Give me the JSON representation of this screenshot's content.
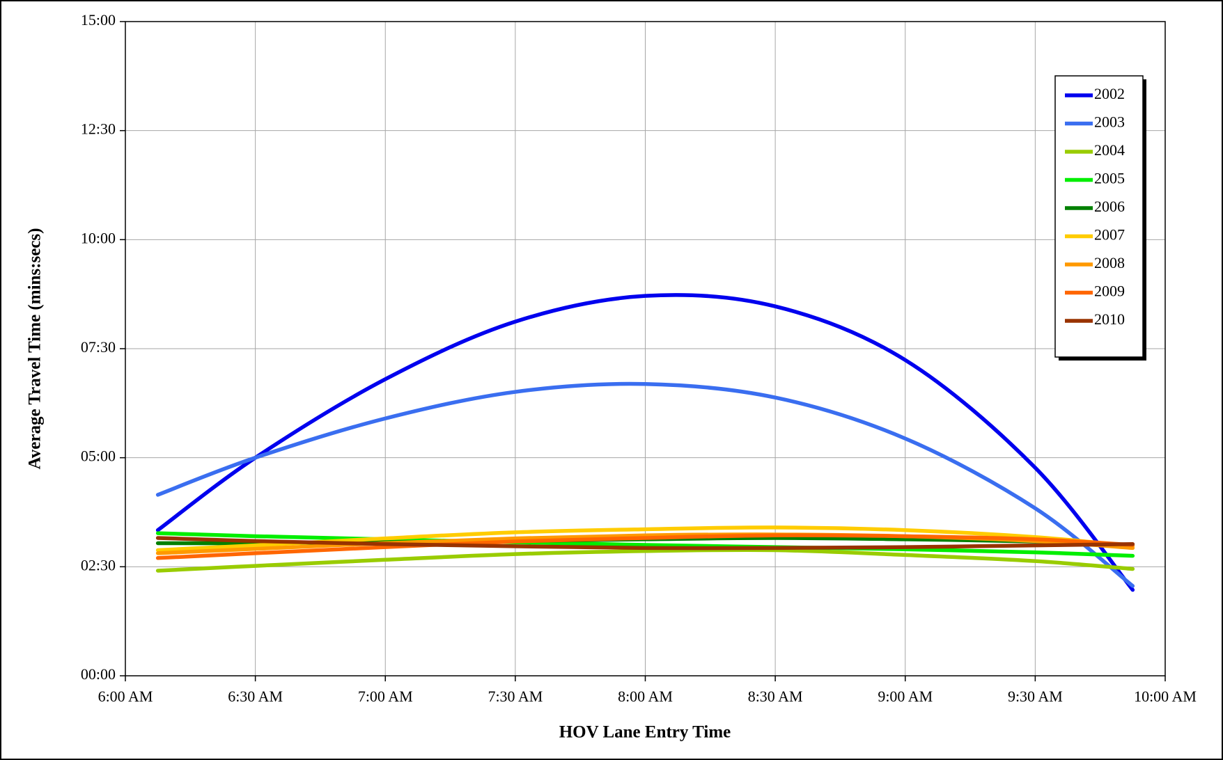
{
  "chart_data": {
    "type": "line",
    "xlabel": "HOV Lane Entry Time",
    "ylabel": "Average Travel Time (mins:secs)",
    "x": [
      6.125,
      6.5,
      7,
      7.5,
      8,
      8.5,
      9,
      9.5,
      9.875
    ],
    "series": [
      {
        "name": "2002",
        "color": "#0000ee",
        "values": [
          3.34,
          5.0,
          6.8,
          8.12,
          8.71,
          8.47,
          7.24,
          4.77,
          1.97
        ]
      },
      {
        "name": "2003",
        "color": "#3a6ef0",
        "values": [
          4.15,
          5.0,
          5.9,
          6.51,
          6.69,
          6.38,
          5.44,
          3.84,
          2.06
        ]
      },
      {
        "name": "2004",
        "color": "#99cc00",
        "values": [
          2.41,
          2.52,
          2.66,
          2.79,
          2.86,
          2.88,
          2.77,
          2.63,
          2.45
        ]
      },
      {
        "name": "2005",
        "color": "#00ee00",
        "values": [
          3.27,
          3.2,
          3.13,
          3.06,
          3.0,
          2.95,
          2.9,
          2.83,
          2.75
        ]
      },
      {
        "name": "2006",
        "color": "#008000",
        "values": [
          3.04,
          3.04,
          3.06,
          3.09,
          3.13,
          3.16,
          3.13,
          3.08,
          2.99
        ]
      },
      {
        "name": "2007",
        "color": "#ffcc00",
        "values": [
          2.88,
          2.99,
          3.15,
          3.29,
          3.36,
          3.4,
          3.34,
          3.18,
          2.97
        ]
      },
      {
        "name": "2008",
        "color": "#ff9900",
        "values": [
          2.81,
          2.91,
          3.04,
          3.15,
          3.22,
          3.24,
          3.2,
          3.09,
          2.93
        ]
      },
      {
        "name": "2009",
        "color": "#ff6600",
        "values": [
          2.7,
          2.81,
          2.95,
          3.08,
          3.16,
          3.22,
          3.2,
          3.13,
          3.0
        ]
      },
      {
        "name": "2010",
        "color": "#993300",
        "values": [
          3.16,
          3.09,
          3.02,
          2.97,
          2.93,
          2.93,
          2.95,
          2.99,
          3.02
        ]
      }
    ],
    "xlim": [
      6,
      10
    ],
    "xticks": [
      {
        "value": 6,
        "label": "6:00 AM"
      },
      {
        "value": 6.5,
        "label": "6:30 AM"
      },
      {
        "value": 7,
        "label": "7:00 AM"
      },
      {
        "value": 7.5,
        "label": "7:30 AM"
      },
      {
        "value": 8,
        "label": "8:00 AM"
      },
      {
        "value": 8.5,
        "label": "8:30 AM"
      },
      {
        "value": 9,
        "label": "9:00 AM"
      },
      {
        "value": 9.5,
        "label": "9:30 AM"
      },
      {
        "value": 10,
        "label": "10:00 AM"
      }
    ],
    "ylim": [
      0,
      15
    ],
    "yticks": [
      {
        "value": 0,
        "label": "00:00"
      },
      {
        "value": 2.5,
        "label": "02:30"
      },
      {
        "value": 5,
        "label": "05:00"
      },
      {
        "value": 7.5,
        "label": "07:30"
      },
      {
        "value": 10,
        "label": "10:00"
      },
      {
        "value": 12.5,
        "label": "12:30"
      },
      {
        "value": 15,
        "label": "15:00"
      }
    ],
    "grid": true,
    "legend": "upper-right"
  }
}
